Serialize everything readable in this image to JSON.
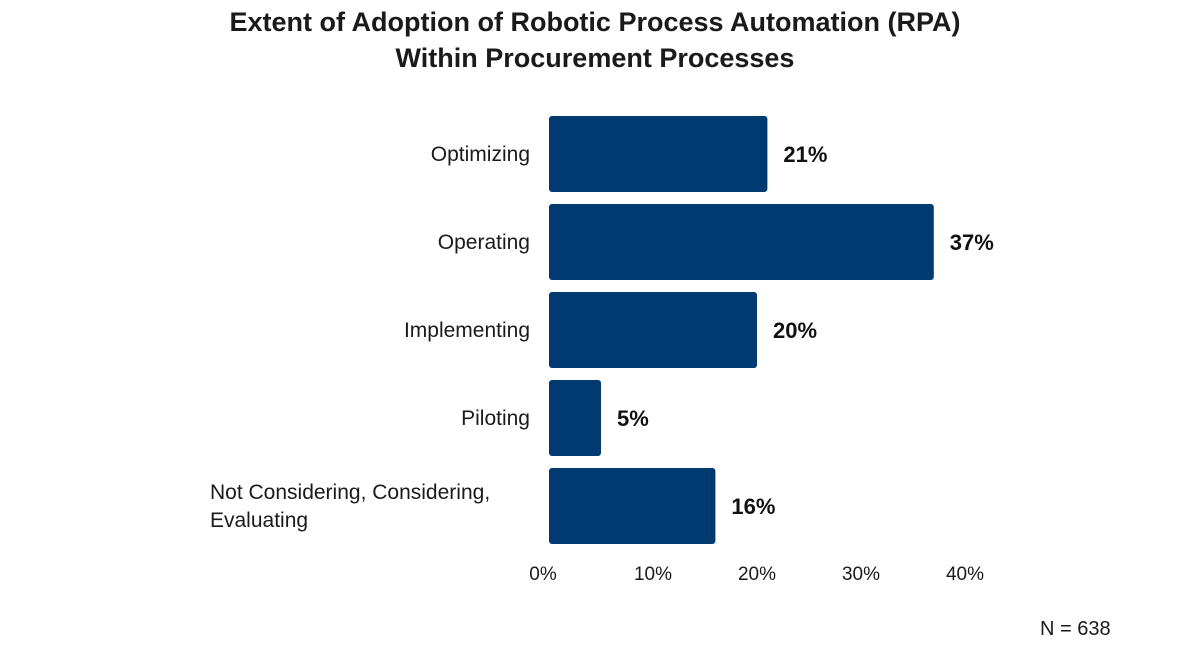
{
  "chart_data": {
    "type": "bar",
    "orientation": "horizontal",
    "title_lines": [
      "Extent of Adoption of Robotic Process Automation (RPA)",
      "Within Procurement Processes"
    ],
    "categories": [
      "Optimizing",
      "Operating",
      "Implementing",
      "Piloting",
      "Not Considering, Considering, Evaluating"
    ],
    "category_lines": [
      [
        "Optimizing"
      ],
      [
        "Operating"
      ],
      [
        "Implementing"
      ],
      [
        "Piloting"
      ],
      [
        "Not Considering, Considering,",
        "Evaluating"
      ]
    ],
    "values": [
      21,
      37,
      20,
      5,
      16
    ],
    "value_labels": [
      "21%",
      "37%",
      "20%",
      "5%",
      "16%"
    ],
    "xlim": [
      0,
      40
    ],
    "x_ticks": [
      "0%",
      "10%",
      "20%",
      "30%",
      "40%"
    ],
    "xlabel": "",
    "ylabel": "",
    "grid": false,
    "legend": "none",
    "bar_color": "#003a70",
    "note": "N = 638"
  }
}
